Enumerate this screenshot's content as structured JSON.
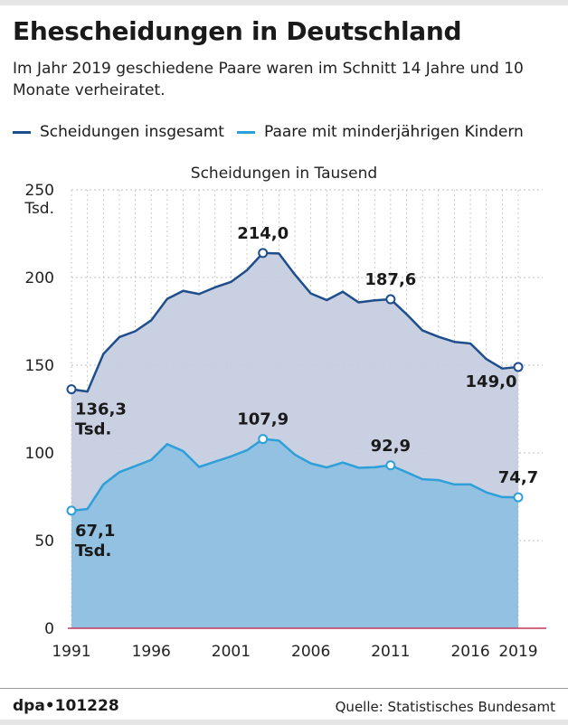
{
  "header": {
    "title": "Ehescheidungen in Deutschland",
    "subtitle": "Im Jahr 2019 geschiedene Paare waren im Schnitt 14 Jahre und 10 Monate verheiratet."
  },
  "colors": {
    "total_line": "#1f4e8c",
    "total_fill": "#c5cde0",
    "children_line": "#2e9fd8",
    "children_fill": "#93c1e1",
    "axis_baseline": "#c0395a",
    "grid": "#bdbdbd"
  },
  "chart_data": {
    "type": "area",
    "title": "Scheidungen in Tausend",
    "ylabel": "",
    "xlabel": "",
    "ylim": [
      0,
      250
    ],
    "xlim": [
      1991,
      2019
    ],
    "y_ticks": [
      0,
      50,
      100,
      150,
      200,
      250
    ],
    "y_unit_label": "Tsd.",
    "x_ticks": [
      1991,
      1996,
      2001,
      2006,
      2011,
      2016,
      2019
    ],
    "grid": true,
    "legend_position": "top",
    "x": [
      1991,
      1992,
      1993,
      1994,
      1995,
      1996,
      1997,
      1998,
      1999,
      2000,
      2001,
      2002,
      2003,
      2004,
      2005,
      2006,
      2007,
      2008,
      2009,
      2010,
      2011,
      2012,
      2013,
      2014,
      2015,
      2016,
      2017,
      2018,
      2019
    ],
    "series": [
      {
        "name": "Scheidungen insgesamt",
        "values": [
          136.3,
          135.0,
          156.4,
          166.0,
          169.4,
          175.6,
          187.8,
          192.4,
          190.6,
          194.4,
          197.5,
          204.2,
          214.0,
          213.7,
          201.7,
          190.9,
          187.1,
          191.9,
          185.8,
          187.0,
          187.6,
          179.1,
          169.8,
          166.2,
          163.3,
          162.4,
          153.5,
          148.1,
          149.0
        ],
        "annotations": [
          {
            "year": 1991,
            "label": "136,3",
            "sub": "Tsd."
          },
          {
            "year": 2003,
            "label": "214,0"
          },
          {
            "year": 2011,
            "label": "187,6"
          },
          {
            "year": 2019,
            "label": "149,0"
          }
        ]
      },
      {
        "name": "Paare mit minderjährigen Kindern",
        "values": [
          67.1,
          68.0,
          82.0,
          89.0,
          92.5,
          96.0,
          105.0,
          101.0,
          92.0,
          95.0,
          98.0,
          101.5,
          107.9,
          107.0,
          99.0,
          94.0,
          91.7,
          94.5,
          91.5,
          91.8,
          92.9,
          89.0,
          85.0,
          84.5,
          82.0,
          82.0,
          77.5,
          74.8,
          74.7
        ],
        "annotations": [
          {
            "year": 1991,
            "label": "67,1",
            "sub": "Tsd."
          },
          {
            "year": 2003,
            "label": "107,9"
          },
          {
            "year": 2011,
            "label": "92,9"
          },
          {
            "year": 2019,
            "label": "74,7"
          }
        ]
      }
    ]
  },
  "footer": {
    "credit": "dpa•101228",
    "source": "Quelle: Statistisches Bundesamt"
  }
}
